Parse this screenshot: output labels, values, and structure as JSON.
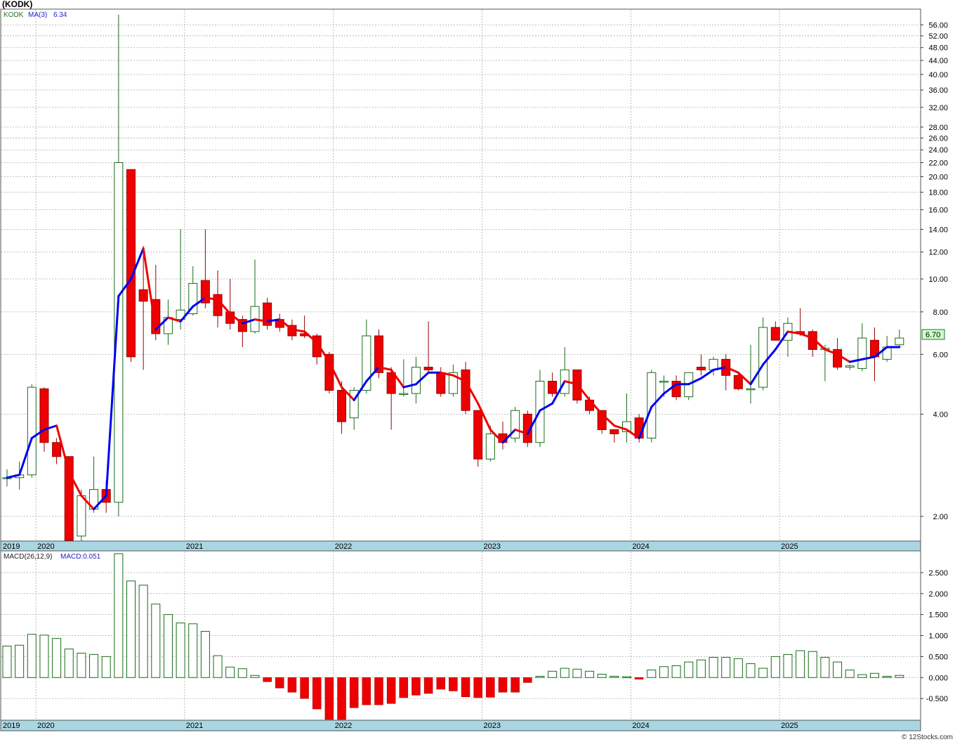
{
  "header": {
    "title": "(KODK)",
    "ticker": "KODK",
    "ma_label": "MA(3)",
    "ma_value": "6.34",
    "last_price": "6.70",
    "watermark": "© 12Stocks.com"
  },
  "macd_header": {
    "label": "MACD(26,12,9)",
    "value_label": "MACD:0.051"
  },
  "colors": {
    "up_body": "#ffffff",
    "up_border": "#1a6b1a",
    "down_body": "#ee0000",
    "down_border": "#990000",
    "ma_rising": "#0000ee",
    "ma_falling": "#ee0000",
    "date_band": "#a9d6e3",
    "grid": "#aaaaaa",
    "last_price_box": "#ccffcc"
  },
  "chart_data": [
    {
      "type": "candlestick",
      "title": "(KODK)",
      "scale": "log",
      "ylim": [
        1.7,
        62
      ],
      "y_ticks": [
        2,
        4,
        6,
        8,
        10,
        12,
        14,
        16,
        18,
        20,
        22,
        24,
        26,
        28,
        32,
        36,
        40,
        44,
        48,
        52,
        56
      ],
      "y_tick_labels": [
        "2.00",
        "4.00",
        "6.00",
        "8.00",
        "10.00",
        "12.00",
        "14.00",
        "16.00",
        "18.00",
        "20.00",
        "22.00",
        "24.00",
        "26.00",
        "28.00",
        "32.00",
        "36.00",
        "40.00",
        "44.00",
        "48.00",
        "52.00",
        "56.00"
      ],
      "x_year_labels": [
        {
          "label": "2019",
          "month_index": 0
        },
        {
          "label": "2020",
          "month_index": 3
        },
        {
          "label": "2021",
          "month_index": 15
        },
        {
          "label": "2022",
          "month_index": 27
        },
        {
          "label": "2023",
          "month_index": 39
        },
        {
          "label": "2024",
          "month_index": 51
        },
        {
          "label": "2025",
          "month_index": 63
        }
      ],
      "grid": true,
      "series": [
        {
          "name": "KODK",
          "candles": [
            {
              "o": 2.6,
              "h": 2.75,
              "l": 2.45,
              "c": 2.6
            },
            {
              "o": 2.6,
              "h": 2.9,
              "l": 2.4,
              "c": 2.65
            },
            {
              "o": 2.65,
              "h": 4.9,
              "l": 2.6,
              "c": 4.8
            },
            {
              "o": 4.75,
              "h": 4.8,
              "l": 3.1,
              "c": 3.3
            },
            {
              "o": 3.3,
              "h": 3.4,
              "l": 2.85,
              "c": 3.0
            },
            {
              "o": 3.0,
              "h": 3.0,
              "l": 1.6,
              "c": 1.7
            },
            {
              "o": 1.75,
              "h": 2.4,
              "l": 1.65,
              "c": 2.3
            },
            {
              "o": 2.1,
              "h": 3.0,
              "l": 2.05,
              "c": 2.4
            },
            {
              "o": 2.4,
              "h": 2.55,
              "l": 2.05,
              "c": 2.2
            },
            {
              "o": 2.2,
              "h": 60.0,
              "l": 2.0,
              "c": 22.0
            },
            {
              "o": 21.0,
              "h": 21.0,
              "l": 5.7,
              "c": 5.9
            },
            {
              "o": 9.3,
              "h": 12.5,
              "l": 5.4,
              "c": 8.6
            },
            {
              "o": 8.7,
              "h": 11.0,
              "l": 6.6,
              "c": 6.9
            },
            {
              "o": 6.9,
              "h": 8.7,
              "l": 6.4,
              "c": 7.7
            },
            {
              "o": 7.6,
              "h": 14.0,
              "l": 7.1,
              "c": 8.1
            },
            {
              "o": 7.9,
              "h": 10.9,
              "l": 7.8,
              "c": 9.7
            },
            {
              "o": 9.9,
              "h": 14.0,
              "l": 8.2,
              "c": 8.5
            },
            {
              "o": 9.0,
              "h": 10.6,
              "l": 7.2,
              "c": 7.8
            },
            {
              "o": 8.0,
              "h": 10.0,
              "l": 7.1,
              "c": 7.4
            },
            {
              "o": 7.6,
              "h": 7.8,
              "l": 6.3,
              "c": 7.0
            },
            {
              "o": 7.0,
              "h": 11.4,
              "l": 6.9,
              "c": 8.3
            },
            {
              "o": 8.5,
              "h": 8.8,
              "l": 7.1,
              "c": 7.3
            },
            {
              "o": 7.6,
              "h": 7.9,
              "l": 7.0,
              "c": 7.2
            },
            {
              "o": 7.3,
              "h": 7.6,
              "l": 6.6,
              "c": 6.8
            },
            {
              "o": 6.9,
              "h": 7.8,
              "l": 6.7,
              "c": 6.8
            },
            {
              "o": 6.8,
              "h": 6.9,
              "l": 5.6,
              "c": 5.9
            },
            {
              "o": 6.0,
              "h": 6.1,
              "l": 4.6,
              "c": 4.7
            },
            {
              "o": 4.7,
              "h": 5.0,
              "l": 3.5,
              "c": 3.8
            },
            {
              "o": 3.9,
              "h": 4.8,
              "l": 3.6,
              "c": 4.7
            },
            {
              "o": 4.7,
              "h": 7.6,
              "l": 4.6,
              "c": 6.8
            },
            {
              "o": 6.8,
              "h": 7.1,
              "l": 5.1,
              "c": 5.3
            },
            {
              "o": 5.3,
              "h": 5.5,
              "l": 3.6,
              "c": 4.6
            },
            {
              "o": 4.6,
              "h": 5.8,
              "l": 4.5,
              "c": 4.6
            },
            {
              "o": 4.6,
              "h": 5.9,
              "l": 4.3,
              "c": 5.5
            },
            {
              "o": 5.5,
              "h": 7.5,
              "l": 5.3,
              "c": 5.4
            },
            {
              "o": 5.3,
              "h": 5.5,
              "l": 4.5,
              "c": 4.6
            },
            {
              "o": 4.6,
              "h": 5.6,
              "l": 4.5,
              "c": 5.3
            },
            {
              "o": 5.4,
              "h": 5.7,
              "l": 4.0,
              "c": 4.1
            },
            {
              "o": 4.1,
              "h": 4.1,
              "l": 2.8,
              "c": 2.95
            },
            {
              "o": 2.95,
              "h": 3.7,
              "l": 2.9,
              "c": 3.5
            },
            {
              "o": 3.5,
              "h": 3.8,
              "l": 3.15,
              "c": 3.3
            },
            {
              "o": 3.4,
              "h": 4.2,
              "l": 3.3,
              "c": 4.1
            },
            {
              "o": 4.0,
              "h": 4.1,
              "l": 3.2,
              "c": 3.3
            },
            {
              "o": 3.3,
              "h": 5.4,
              "l": 3.2,
              "c": 5.0
            },
            {
              "o": 5.0,
              "h": 5.3,
              "l": 4.5,
              "c": 4.6
            },
            {
              "o": 4.6,
              "h": 6.3,
              "l": 4.5,
              "c": 5.4
            },
            {
              "o": 5.4,
              "h": 5.4,
              "l": 4.3,
              "c": 4.4
            },
            {
              "o": 4.4,
              "h": 4.5,
              "l": 4.0,
              "c": 4.1
            },
            {
              "o": 4.1,
              "h": 4.1,
              "l": 3.5,
              "c": 3.6
            },
            {
              "o": 3.6,
              "h": 3.6,
              "l": 3.3,
              "c": 3.5
            },
            {
              "o": 3.55,
              "h": 4.6,
              "l": 3.3,
              "c": 3.8
            },
            {
              "o": 3.9,
              "h": 4.0,
              "l": 3.3,
              "c": 3.4
            },
            {
              "o": 3.4,
              "h": 5.4,
              "l": 3.3,
              "c": 5.3
            },
            {
              "o": 5.0,
              "h": 5.2,
              "l": 4.5,
              "c": 5.0
            },
            {
              "o": 5.0,
              "h": 5.2,
              "l": 4.4,
              "c": 4.5
            },
            {
              "o": 4.5,
              "h": 5.3,
              "l": 4.4,
              "c": 5.3
            },
            {
              "o": 5.5,
              "h": 6.0,
              "l": 5.2,
              "c": 5.4
            },
            {
              "o": 5.4,
              "h": 5.9,
              "l": 5.2,
              "c": 5.8
            },
            {
              "o": 5.8,
              "h": 6.0,
              "l": 4.7,
              "c": 5.2
            },
            {
              "o": 5.2,
              "h": 5.3,
              "l": 4.7,
              "c": 4.75
            },
            {
              "o": 4.75,
              "h": 6.4,
              "l": 4.3,
              "c": 4.75
            },
            {
              "o": 4.8,
              "h": 7.7,
              "l": 4.7,
              "c": 7.2
            },
            {
              "o": 7.2,
              "h": 7.5,
              "l": 6.7,
              "c": 6.6
            },
            {
              "o": 6.6,
              "h": 7.7,
              "l": 5.9,
              "c": 7.4
            },
            {
              "o": 7.0,
              "h": 8.2,
              "l": 6.8,
              "c": 6.9
            },
            {
              "o": 7.0,
              "h": 7.1,
              "l": 5.9,
              "c": 6.2
            },
            {
              "o": 6.2,
              "h": 6.4,
              "l": 5.0,
              "c": 6.25
            },
            {
              "o": 6.2,
              "h": 6.7,
              "l": 5.4,
              "c": 5.5
            },
            {
              "o": 5.5,
              "h": 5.6,
              "l": 5.4,
              "c": 5.55
            },
            {
              "o": 5.45,
              "h": 7.4,
              "l": 5.35,
              "c": 6.7
            },
            {
              "o": 6.6,
              "h": 7.2,
              "l": 5.0,
              "c": 5.9
            },
            {
              "o": 5.8,
              "h": 6.8,
              "l": 5.7,
              "c": 6.3
            },
            {
              "o": 6.4,
              "h": 7.1,
              "l": 6.3,
              "c": 6.7
            }
          ]
        },
        {
          "name": "MA(3)",
          "values": [
            2.6,
            2.65,
            3.4,
            3.6,
            3.7,
            2.7,
            2.3,
            2.1,
            2.3,
            8.9,
            10.0,
            12.3,
            7.1,
            7.7,
            7.5,
            8.3,
            8.8,
            8.7,
            7.9,
            7.4,
            7.6,
            7.5,
            7.6,
            7.1,
            7.0,
            6.5,
            5.7,
            4.8,
            4.4,
            5.0,
            5.5,
            5.4,
            4.8,
            4.9,
            5.3,
            5.3,
            5.2,
            5.0,
            4.3,
            3.6,
            3.3,
            3.6,
            3.5,
            4.1,
            4.3,
            5.0,
            4.9,
            4.4,
            4.0,
            3.7,
            3.6,
            3.4,
            4.2,
            4.6,
            4.9,
            4.9,
            5.1,
            5.4,
            5.5,
            5.3,
            4.9,
            5.6,
            6.2,
            7.0,
            6.9,
            6.7,
            6.2,
            6.0,
            5.7,
            5.8,
            5.9,
            6.3,
            6.3
          ]
        }
      ]
    },
    {
      "type": "bar",
      "title": "MACD(26,12,9)",
      "ylim": [
        -1.0,
        3.0
      ],
      "y_ticks": [
        -0.5,
        0.0,
        0.5,
        1.0,
        1.5,
        2.0,
        2.5
      ],
      "y_tick_labels": [
        "-0.500",
        "0.000",
        "0.500",
        "1.000",
        "1.500",
        "2.000",
        "2.500"
      ],
      "x_year_labels": [
        {
          "label": "2019",
          "month_index": 0
        },
        {
          "label": "2020",
          "month_index": 3
        },
        {
          "label": "2021",
          "month_index": 15
        },
        {
          "label": "2022",
          "month_index": 27
        },
        {
          "label": "2023",
          "month_index": 39
        },
        {
          "label": "2024",
          "month_index": 51
        },
        {
          "label": "2025",
          "month_index": 63
        }
      ],
      "grid": true,
      "series": [
        {
          "name": "MACD",
          "values": [
            0.75,
            0.77,
            1.03,
            1.01,
            0.93,
            0.68,
            0.58,
            0.55,
            0.5,
            2.95,
            2.3,
            2.2,
            1.75,
            1.5,
            1.3,
            1.28,
            1.1,
            0.52,
            0.25,
            0.21,
            0.05,
            -0.1,
            -0.25,
            -0.35,
            -0.5,
            -0.75,
            -1.0,
            -1.0,
            -0.72,
            -0.65,
            -0.65,
            -0.62,
            -0.48,
            -0.42,
            -0.38,
            -0.28,
            -0.32,
            -0.46,
            -0.48,
            -0.47,
            -0.35,
            -0.35,
            -0.12,
            0.03,
            0.15,
            0.22,
            0.2,
            0.15,
            0.08,
            0.03,
            0.02,
            -0.04,
            0.18,
            0.26,
            0.28,
            0.37,
            0.42,
            0.48,
            0.48,
            0.45,
            0.33,
            0.22,
            0.5,
            0.55,
            0.64,
            0.62,
            0.48,
            0.37,
            0.18,
            0.07,
            0.1,
            0.03,
            0.051
          ]
        }
      ]
    }
  ]
}
